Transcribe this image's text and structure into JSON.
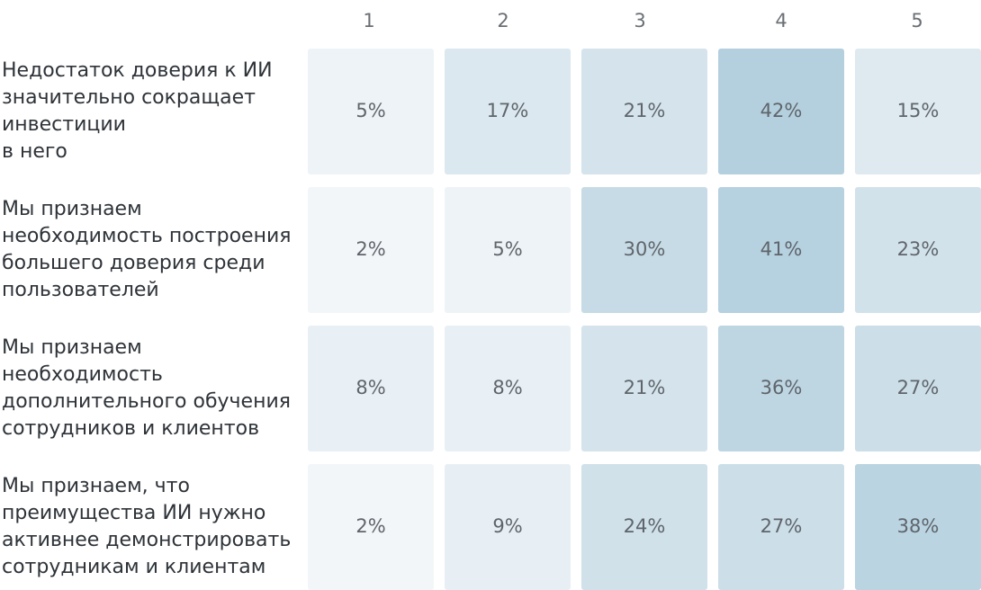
{
  "chart_data": {
    "type": "heatmap",
    "columns": [
      "1",
      "2",
      "3",
      "4",
      "5"
    ],
    "rows": [
      {
        "label_lines": [
          "Недостаток доверия к ИИ",
          "значительно сокращает",
          "инвестиции",
          "в него"
        ],
        "values": [
          5,
          17,
          21,
          42,
          15
        ],
        "labels": [
          "5%",
          "17%",
          "21%",
          "42%",
          "15%"
        ]
      },
      {
        "label_lines": [
          "Мы признаем",
          "необходимость построения",
          "большего доверия среди",
          "пользователей"
        ],
        "values": [
          2,
          5,
          30,
          41,
          23
        ],
        "labels": [
          "2%",
          "5%",
          "30%",
          "41%",
          "23%"
        ]
      },
      {
        "label_lines": [
          "Мы признаем",
          "необходимость",
          "дополнительного обучения",
          "сотрудников и клиентов"
        ],
        "values": [
          8,
          8,
          21,
          36,
          27
        ],
        "labels": [
          "8%",
          "8%",
          "21%",
          "36%",
          "27%"
        ]
      },
      {
        "label_lines": [
          "Мы признаем, что",
          "преимущества ИИ нужно",
          "активнее демонстрировать",
          "сотрудникам и клиентам"
        ],
        "values": [
          2,
          9,
          24,
          27,
          38
        ],
        "labels": [
          "2%",
          "9%",
          "24%",
          "27%",
          "38%"
        ]
      }
    ],
    "color_low": "#f6f8fa",
    "color_high": "#b4d0de",
    "value_range": [
      0,
      42
    ]
  }
}
